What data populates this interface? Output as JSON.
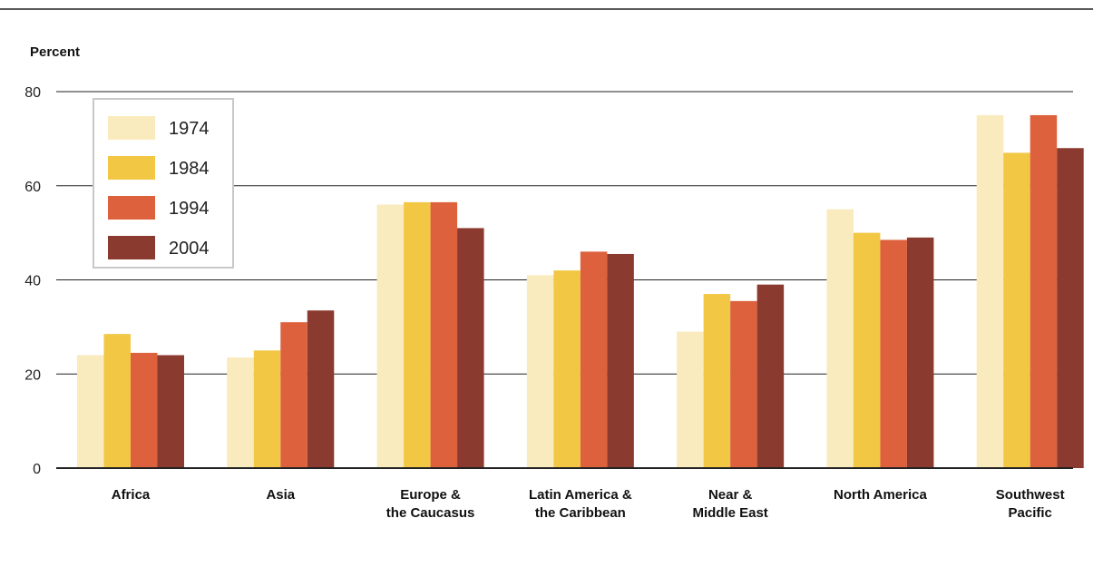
{
  "chart_data": {
    "type": "bar",
    "ylabel": "Percent",
    "ylim": [
      0,
      80
    ],
    "yticks": [
      0,
      20,
      40,
      60,
      80
    ],
    "grid": true,
    "legend_position": "top-left",
    "categories": [
      [
        "Africa"
      ],
      [
        "Asia"
      ],
      [
        "Europe &",
        "the Caucasus"
      ],
      [
        "Latin America &",
        "the Caribbean"
      ],
      [
        "Near &",
        "Middle East"
      ],
      [
        "North America"
      ],
      [
        "Southwest",
        "Pacific"
      ]
    ],
    "series": [
      {
        "name": "1974",
        "color": "#f9ebbd",
        "values": [
          24,
          23.5,
          56,
          41,
          29,
          55,
          75
        ]
      },
      {
        "name": "1984",
        "color": "#f2c744",
        "values": [
          28.5,
          25,
          56.5,
          42,
          37,
          50,
          67
        ]
      },
      {
        "name": "1994",
        "color": "#dd613c",
        "values": [
          24.5,
          31,
          56.5,
          46,
          35.5,
          48.5,
          75
        ]
      },
      {
        "name": "2004",
        "color": "#8b3a2f",
        "values": [
          24,
          33.5,
          51,
          45.5,
          39,
          49,
          68
        ]
      }
    ]
  }
}
